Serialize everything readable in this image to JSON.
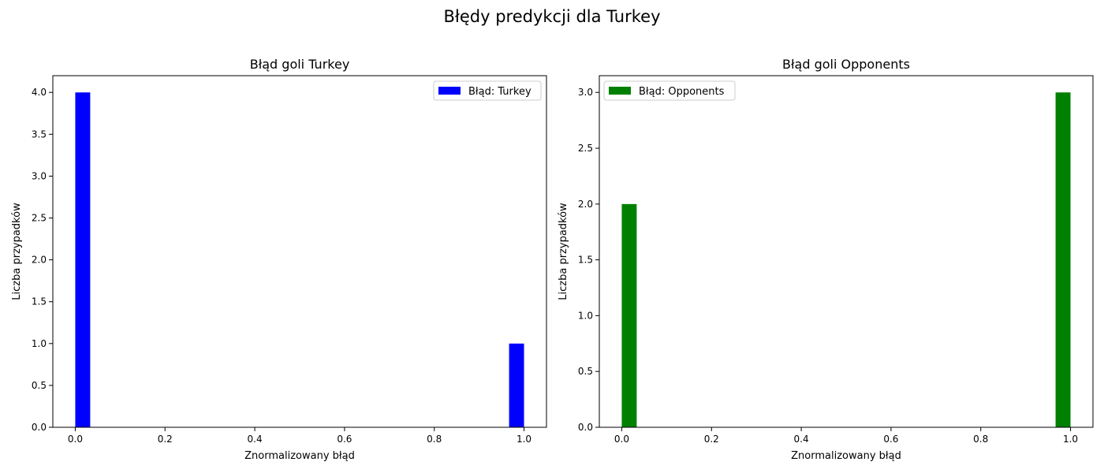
{
  "suptitle": "Błędy predykcji dla Turkey",
  "chart_data": [
    {
      "type": "bar",
      "title": "Błąd goli Turkey",
      "xlabel": "Znormalizowany błąd",
      "ylabel": "Liczba przypadków",
      "xlim": [
        -0.05,
        1.05
      ],
      "ylim": [
        0,
        4.2
      ],
      "xticks": [
        0.0,
        0.2,
        0.4,
        0.6,
        0.8,
        1.0
      ],
      "xtick_labels": [
        "0.0",
        "0.2",
        "0.4",
        "0.6",
        "0.8",
        "1.0"
      ],
      "yticks": [
        0,
        0.5,
        1.0,
        1.5,
        2.0,
        2.5,
        3.0,
        3.5,
        4.0
      ],
      "ytick_labels": [
        "0.0",
        "0.5",
        "1.0",
        "1.5",
        "2.0",
        "2.5",
        "3.0",
        "3.5",
        "4.0"
      ],
      "bin_width": 0.0333,
      "color": "#0000ff",
      "legend": {
        "label": "Błąd: Turkey",
        "placement": "top-right"
      },
      "bars": [
        {
          "x": 0.0,
          "value": 4
        },
        {
          "x": 0.9667,
          "value": 1
        }
      ]
    },
    {
      "type": "bar",
      "title": "Błąd goli Opponents",
      "xlabel": "Znormalizowany błąd",
      "ylabel": "Liczba przypadków",
      "xlim": [
        -0.05,
        1.05
      ],
      "ylim": [
        0,
        3.15
      ],
      "xticks": [
        0.0,
        0.2,
        0.4,
        0.6,
        0.8,
        1.0
      ],
      "xtick_labels": [
        "0.0",
        "0.2",
        "0.4",
        "0.6",
        "0.8",
        "1.0"
      ],
      "yticks": [
        0,
        0.5,
        1.0,
        1.5,
        2.0,
        2.5,
        3.0
      ],
      "ytick_labels": [
        "0.0",
        "0.5",
        "1.0",
        "1.5",
        "2.0",
        "2.5",
        "3.0"
      ],
      "bin_width": 0.0333,
      "color": "#008000",
      "legend": {
        "label": "Błąd: Opponents",
        "placement": "top-left"
      },
      "bars": [
        {
          "x": 0.0,
          "value": 2
        },
        {
          "x": 0.9667,
          "value": 3
        }
      ]
    }
  ]
}
